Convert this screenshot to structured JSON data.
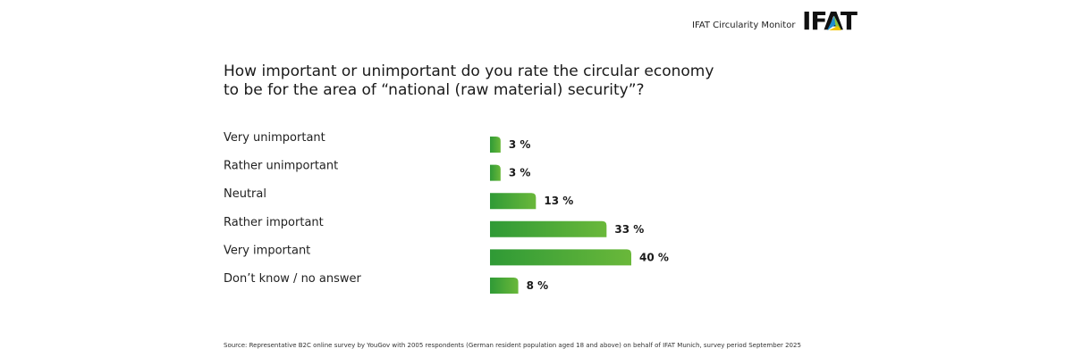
{
  "header": {
    "monitor_label": "IFAT Circularity Monitor",
    "logo_text": "IFAT"
  },
  "question": {
    "line1": "How important or unimportant do you rate the circular economy",
    "line2": "to be for the area of “national (raw material) security”?"
  },
  "chart_data": {
    "type": "bar",
    "orientation": "horizontal",
    "categories": [
      "Very unimportant",
      "Rather unimportant",
      "Neutral",
      "Rather important",
      "Very important",
      "Don’t know / no answer"
    ],
    "values": [
      3,
      3,
      13,
      33,
      40,
      8
    ],
    "value_labels": [
      "3 %",
      "3 %",
      "13 %",
      "33 %",
      "40 %",
      "8 %"
    ],
    "unit": "%",
    "title": "",
    "xlabel": "",
    "ylabel": "",
    "grid": false,
    "bar_color_start": "#6ab83a",
    "bar_color_end": "#2f9a36"
  },
  "source": {
    "text": "Source: Representative B2C online survey by YouGov with 2005 respondents (German resident population aged 18 and above) on behalf of IFAT Munich, survey period September 2025"
  },
  "colors": {
    "logo_black": "#111111",
    "logo_blue": "#1f8fd0",
    "logo_green": "#8cc63f",
    "logo_yellow": "#f2c500"
  }
}
